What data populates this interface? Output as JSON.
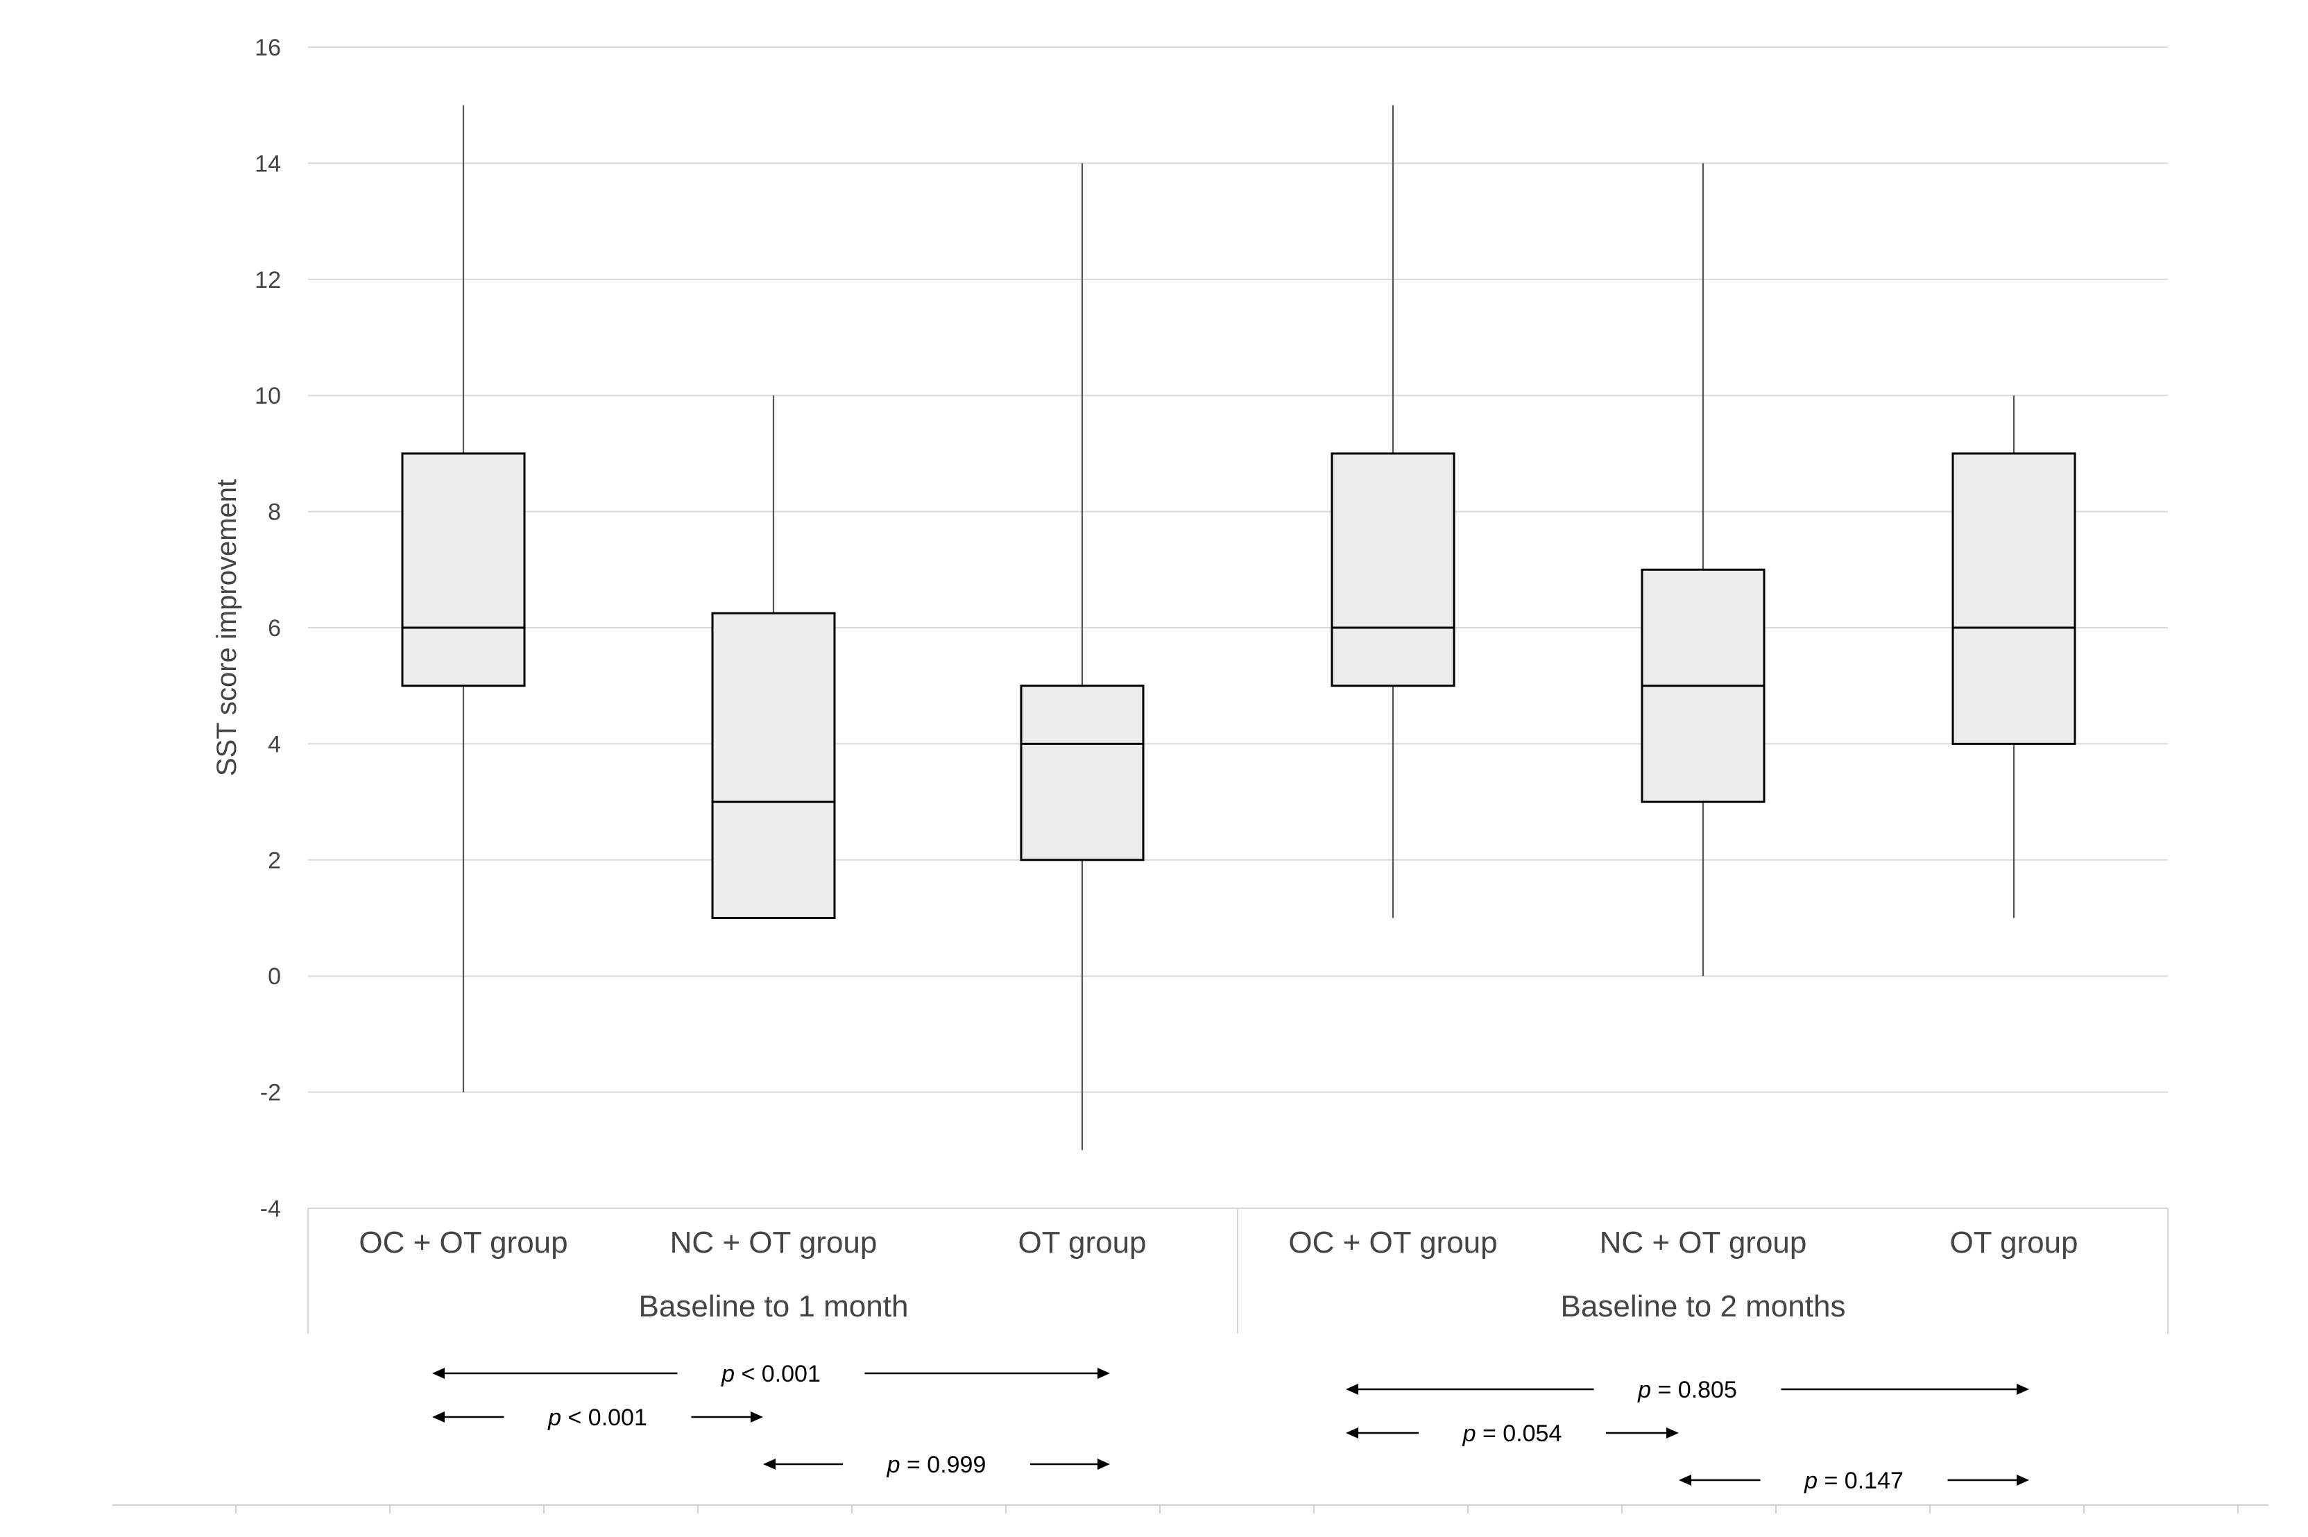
{
  "chart_data": {
    "type": "box",
    "ylabel": "SST score improvement",
    "ylim": [
      -4,
      16
    ],
    "yticks": [
      -4,
      -2,
      0,
      2,
      4,
      6,
      8,
      10,
      12,
      14,
      16
    ],
    "grid": true,
    "groups": [
      {
        "label": "Baseline to 1 month",
        "categories": [
          {
            "name": "OC + OT group",
            "min": -2,
            "q1": 5,
            "median": 6,
            "q3": 9,
            "max": 15
          },
          {
            "name": "NC + OT group",
            "min": 1,
            "q1": 1,
            "median": 3,
            "q3": 6.25,
            "max": 10
          },
          {
            "name": "OT group",
            "min": -3,
            "q1": 2,
            "median": 4,
            "q3": 5,
            "max": 14
          }
        ],
        "comparisons": [
          {
            "from": 0,
            "to": 2,
            "p_symbol": "p",
            "p_rest": " < 0.001"
          },
          {
            "from": 0,
            "to": 1,
            "p_symbol": "p",
            "p_rest": " < 0.001"
          },
          {
            "from": 1,
            "to": 2,
            "p_symbol": "p",
            "p_rest": " = 0.999"
          }
        ]
      },
      {
        "label": "Baseline to 2 months",
        "categories": [
          {
            "name": "OC + OT group",
            "min": 1,
            "q1": 5,
            "median": 6,
            "q3": 9,
            "max": 15
          },
          {
            "name": "NC + OT group",
            "min": 0,
            "q1": 3,
            "median": 5,
            "q3": 7,
            "max": 14
          },
          {
            "name": "OT group",
            "min": 1,
            "q1": 4,
            "median": 6,
            "q3": 9,
            "max": 10
          }
        ],
        "comparisons": [
          {
            "from": 0,
            "to": 2,
            "p_symbol": "p",
            "p_rest": " = 0.805"
          },
          {
            "from": 0,
            "to": 1,
            "p_symbol": "p",
            "p_rest": " = 0.054"
          },
          {
            "from": 1,
            "to": 2,
            "p_symbol": "p",
            "p_rest": " = 0.147"
          }
        ]
      }
    ],
    "colors": {
      "box_fill": "#ececec",
      "box_stroke": "#000000",
      "whisker": "#555555",
      "grid": "#d9d9d9",
      "text": "#444444"
    }
  }
}
